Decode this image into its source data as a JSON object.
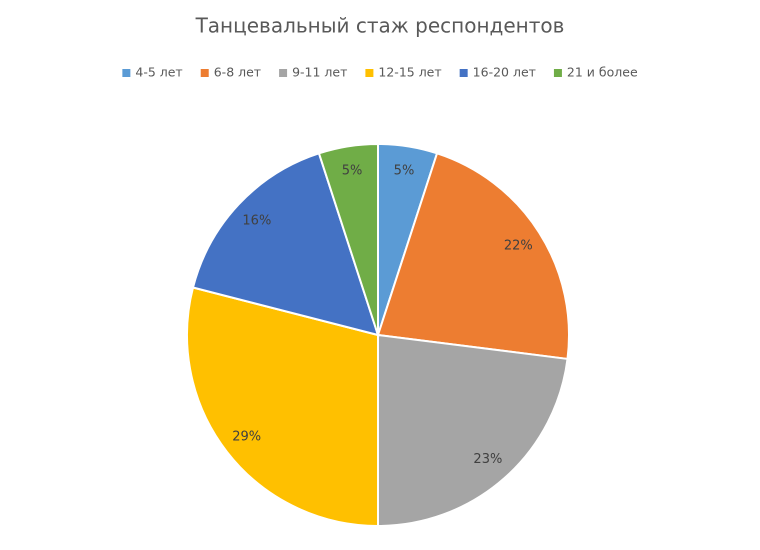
{
  "chart_data": {
    "type": "pie",
    "title": "Танцевальный стаж респондентов",
    "categories": [
      "4-5 лет",
      "6-8 лет",
      "9-11 лет",
      "12-15 лет",
      "16-20 лет",
      "21 и более"
    ],
    "values": [
      5,
      22,
      23,
      29,
      16,
      5
    ],
    "value_labels": [
      "5%",
      "22%",
      "23%",
      "29%",
      "16%",
      "5%"
    ],
    "colors": [
      "#5b9bd5",
      "#ed7d31",
      "#a5a5a5",
      "#ffc000",
      "#4472c4",
      "#70ad47"
    ],
    "legend": "top"
  }
}
